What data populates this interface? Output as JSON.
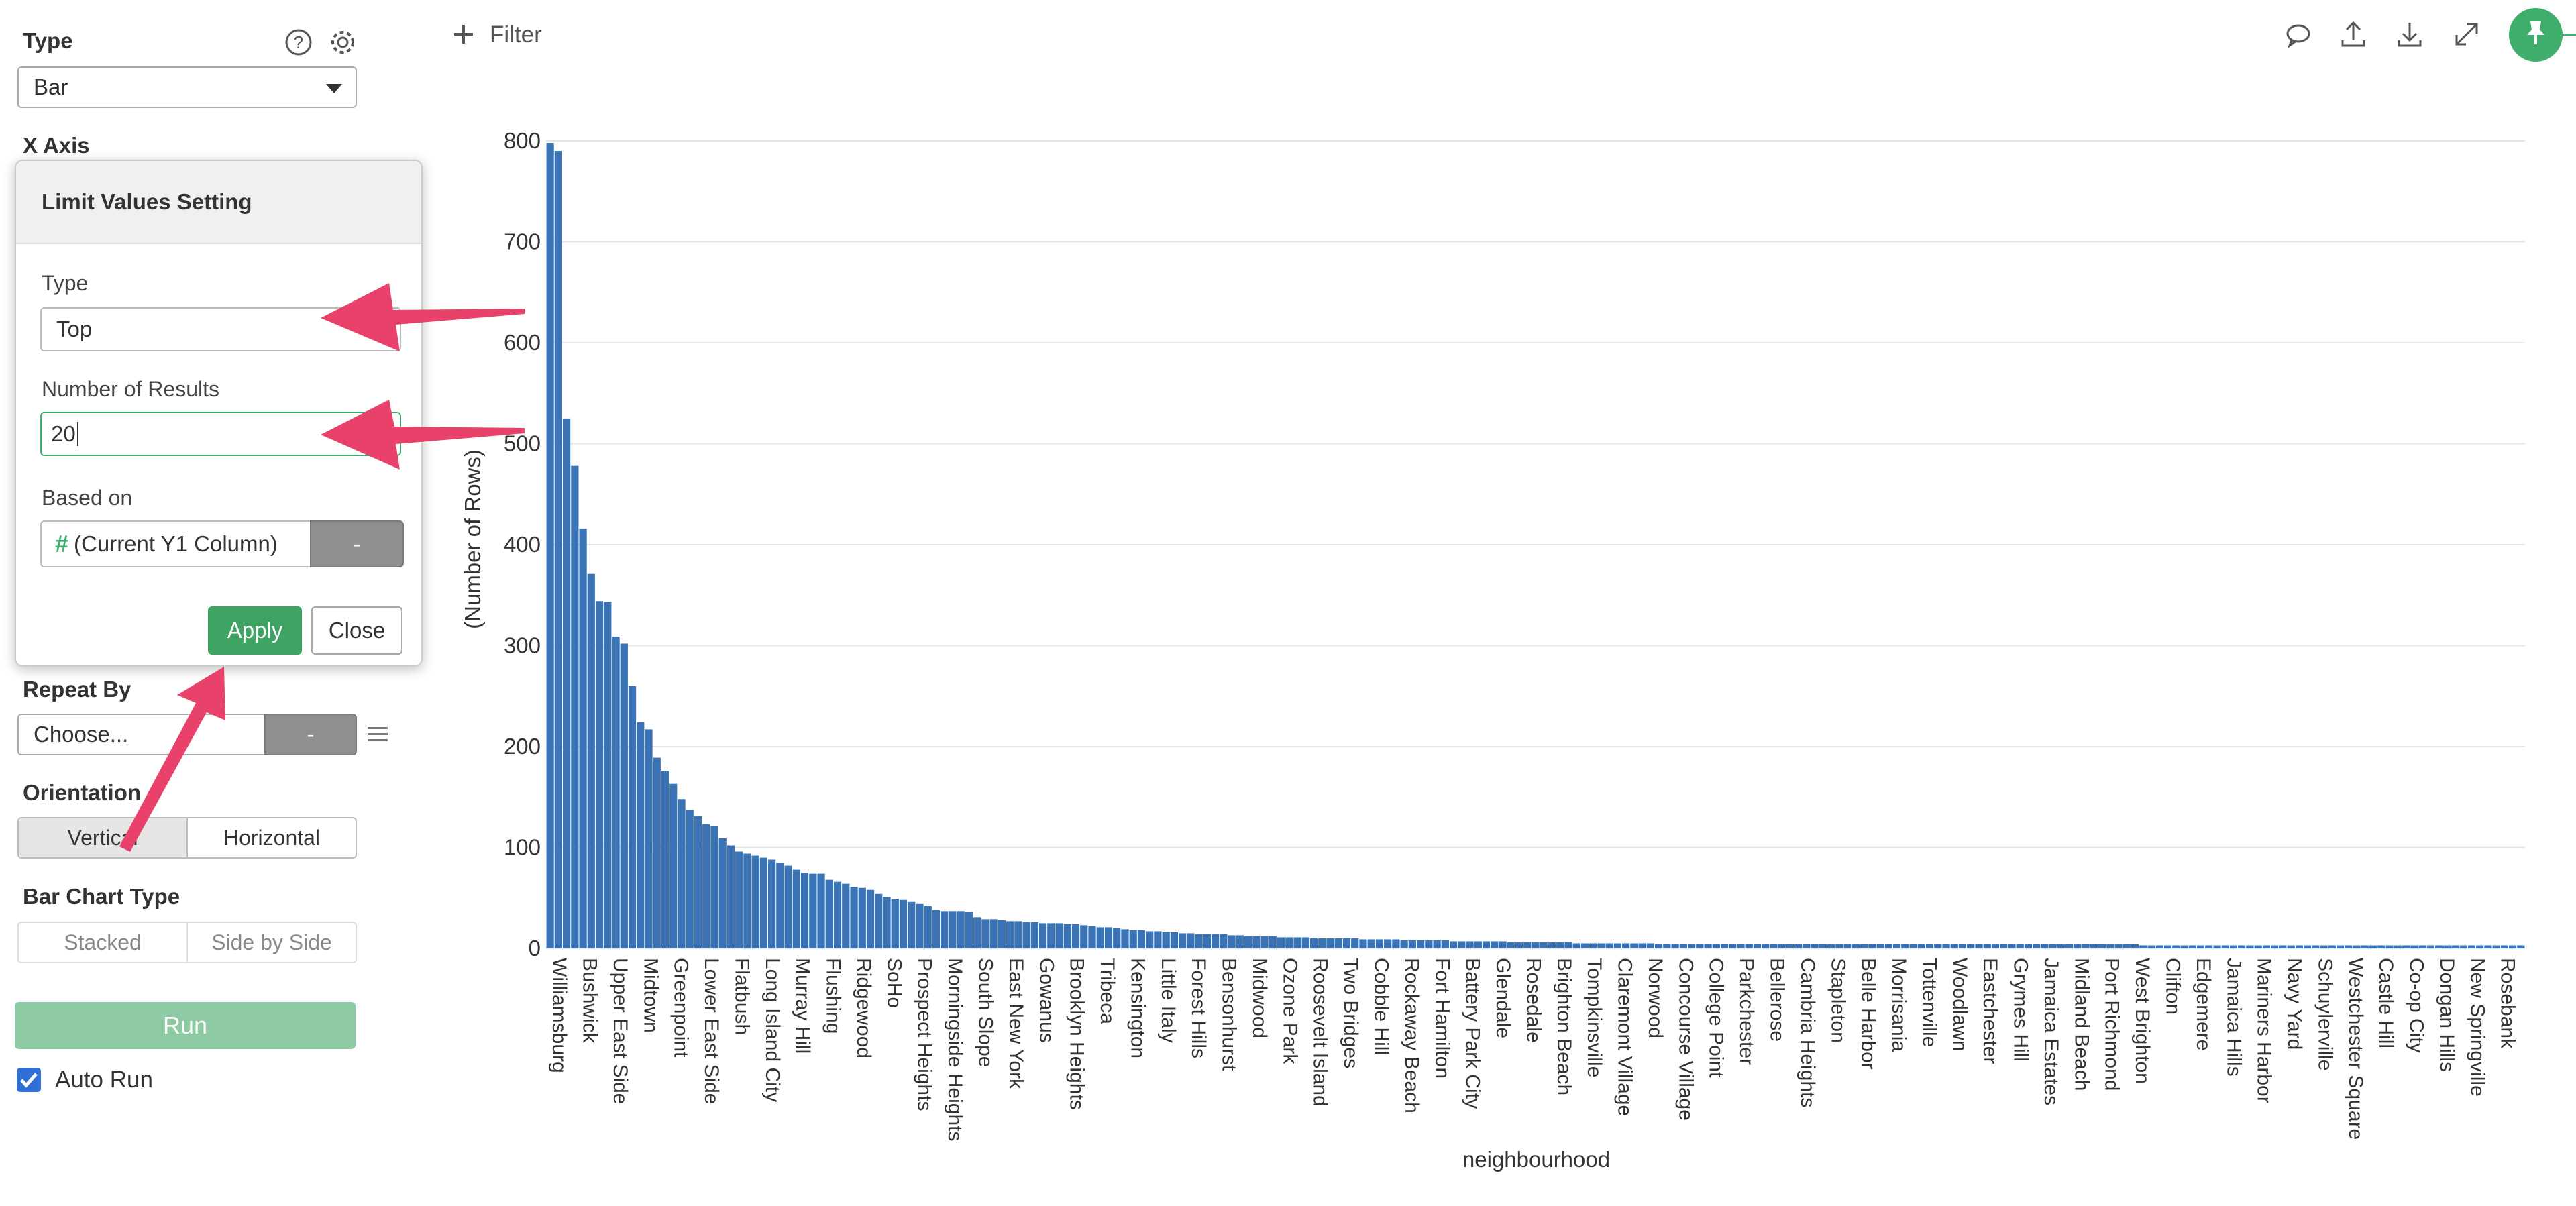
{
  "toolbar": {
    "filter_label": "Filter",
    "icons": [
      "comment-icon",
      "upload-icon",
      "download-icon",
      "expand-icon",
      "pin-icon"
    ],
    "pin_color": "#3fae6c"
  },
  "sidebar": {
    "type_label": "Type",
    "type_value": "Bar",
    "xaxis_label": "X Axis",
    "repeat_by_label": "Repeat By",
    "repeat_by_value": "Choose...",
    "repeat_by_btn": "-",
    "orientation_label": "Orientation",
    "orientation_options": [
      "Vertical",
      "Horizontal"
    ],
    "orientation_selected": "Vertical",
    "bar_chart_type_label": "Bar Chart Type",
    "bar_chart_type_options": [
      "Stacked",
      "Side by Side"
    ],
    "run_label": "Run",
    "auto_run_label": "Auto Run",
    "auto_run_checked": true
  },
  "popup": {
    "title": "Limit Values Setting",
    "type_label": "Type",
    "type_value": "Top",
    "num_results_label": "Number of Results",
    "num_results_value": "20",
    "based_on_label": "Based on",
    "based_on_value": "(Current Y1 Column)",
    "based_on_btn": "-",
    "apply_label": "Apply",
    "close_label": "Close"
  },
  "annotation_color": "#e8426a",
  "chart_data": {
    "type": "bar",
    "xlabel": "neighbourhood",
    "ylabel": "(Number of Rows)",
    "ylim": [
      0,
      800
    ],
    "yticks": [
      0,
      100,
      200,
      300,
      400,
      500,
      600,
      700,
      800
    ],
    "grid": true,
    "bar_color": "#3a74b4",
    "labeled_categories": [
      "Williamsburg",
      "Bushwick",
      "Upper East Side",
      "Midtown",
      "Greenpoint",
      "Lower East Side",
      "Flatbush",
      "Long Island City",
      "Murray Hill",
      "Flushing",
      "Ridgewood",
      "SoHo",
      "Prospect Heights",
      "Morningside Heights",
      "South Slope",
      "East New York",
      "Gowanus",
      "Brooklyn Heights",
      "Tribeca",
      "Kensington",
      "Little Italy",
      "Forest Hills",
      "Bensonhurst",
      "Midwood",
      "Ozone Park",
      "Roosevelt Island",
      "Two Bridges",
      "Cobble Hill",
      "Rockaway Beach",
      "Fort Hamilton",
      "Battery Park City",
      "Glendale",
      "Rosedale",
      "Brighton Beach",
      "Tompkinsville",
      "Claremont Village",
      "Norwood",
      "Concourse Village",
      "College Point",
      "Parkchester",
      "Bellerose",
      "Cambria Heights",
      "Stapleton",
      "Belle Harbor",
      "Morrisania",
      "Tottenville",
      "Woodlawn",
      "Eastchester",
      "Grymes Hill",
      "Jamaica Estates",
      "Midland Beach",
      "Port Richmond",
      "West Brighton",
      "Clifton",
      "Edgemere",
      "Jamaica Hills",
      "Mariners Harbor",
      "Navy Yard",
      "Schuylerville",
      "Westchester Square",
      "Castle Hill",
      "Co-op City",
      "Dongan Hills",
      "New Springville",
      "Rosebank"
    ],
    "values": [
      798,
      790,
      525,
      478,
      416,
      371,
      344,
      343,
      309,
      302,
      260,
      224,
      217,
      189,
      176,
      163,
      148,
      137,
      131,
      123,
      121,
      109,
      102,
      96,
      94,
      92,
      90,
      88,
      85,
      82,
      78,
      75,
      74,
      74,
      68,
      66,
      64,
      61,
      60,
      58,
      54,
      51,
      49,
      48,
      46,
      44,
      42,
      38,
      37,
      37,
      37,
      36,
      31,
      29,
      29,
      28,
      27,
      27,
      26,
      26,
      25,
      25,
      25,
      24,
      24,
      23,
      22,
      21,
      21,
      20,
      19,
      18,
      18,
      17,
      17,
      16,
      16,
      15,
      15,
      14,
      14,
      14,
      14,
      13,
      13,
      12,
      12,
      12,
      12,
      11,
      11,
      11,
      11,
      10,
      10,
      10,
      10,
      10,
      10,
      9,
      9,
      9,
      9,
      9,
      8,
      8,
      8,
      8,
      8,
      8,
      7,
      7,
      7,
      7,
      7,
      7,
      7,
      6,
      6,
      6,
      6,
      6,
      6,
      6,
      6,
      5,
      5,
      5,
      5,
      5,
      5,
      5,
      5,
      5,
      5,
      4,
      4,
      4,
      4,
      4,
      4,
      4,
      4,
      4,
      4,
      4,
      4,
      4,
      4,
      4,
      4,
      4,
      4,
      4,
      4,
      4,
      4,
      4,
      4,
      4,
      4,
      4,
      4,
      4,
      4,
      4,
      4,
      4,
      4,
      4,
      4,
      4,
      4,
      4,
      4,
      4,
      4,
      4,
      4,
      4,
      4,
      4,
      4,
      4,
      4,
      4,
      4,
      4,
      4,
      4,
      4,
      4,
      4,
      4,
      3,
      3,
      3,
      3,
      3,
      3,
      3,
      3,
      3,
      3,
      3,
      3,
      3,
      3,
      3,
      3,
      3,
      3,
      3,
      3,
      3,
      3,
      3,
      3,
      3,
      3,
      3,
      3,
      3,
      3,
      3,
      3,
      3,
      3,
      3,
      3,
      3,
      3,
      3,
      3,
      3,
      3,
      3,
      3,
      3,
      3,
      3
    ]
  }
}
